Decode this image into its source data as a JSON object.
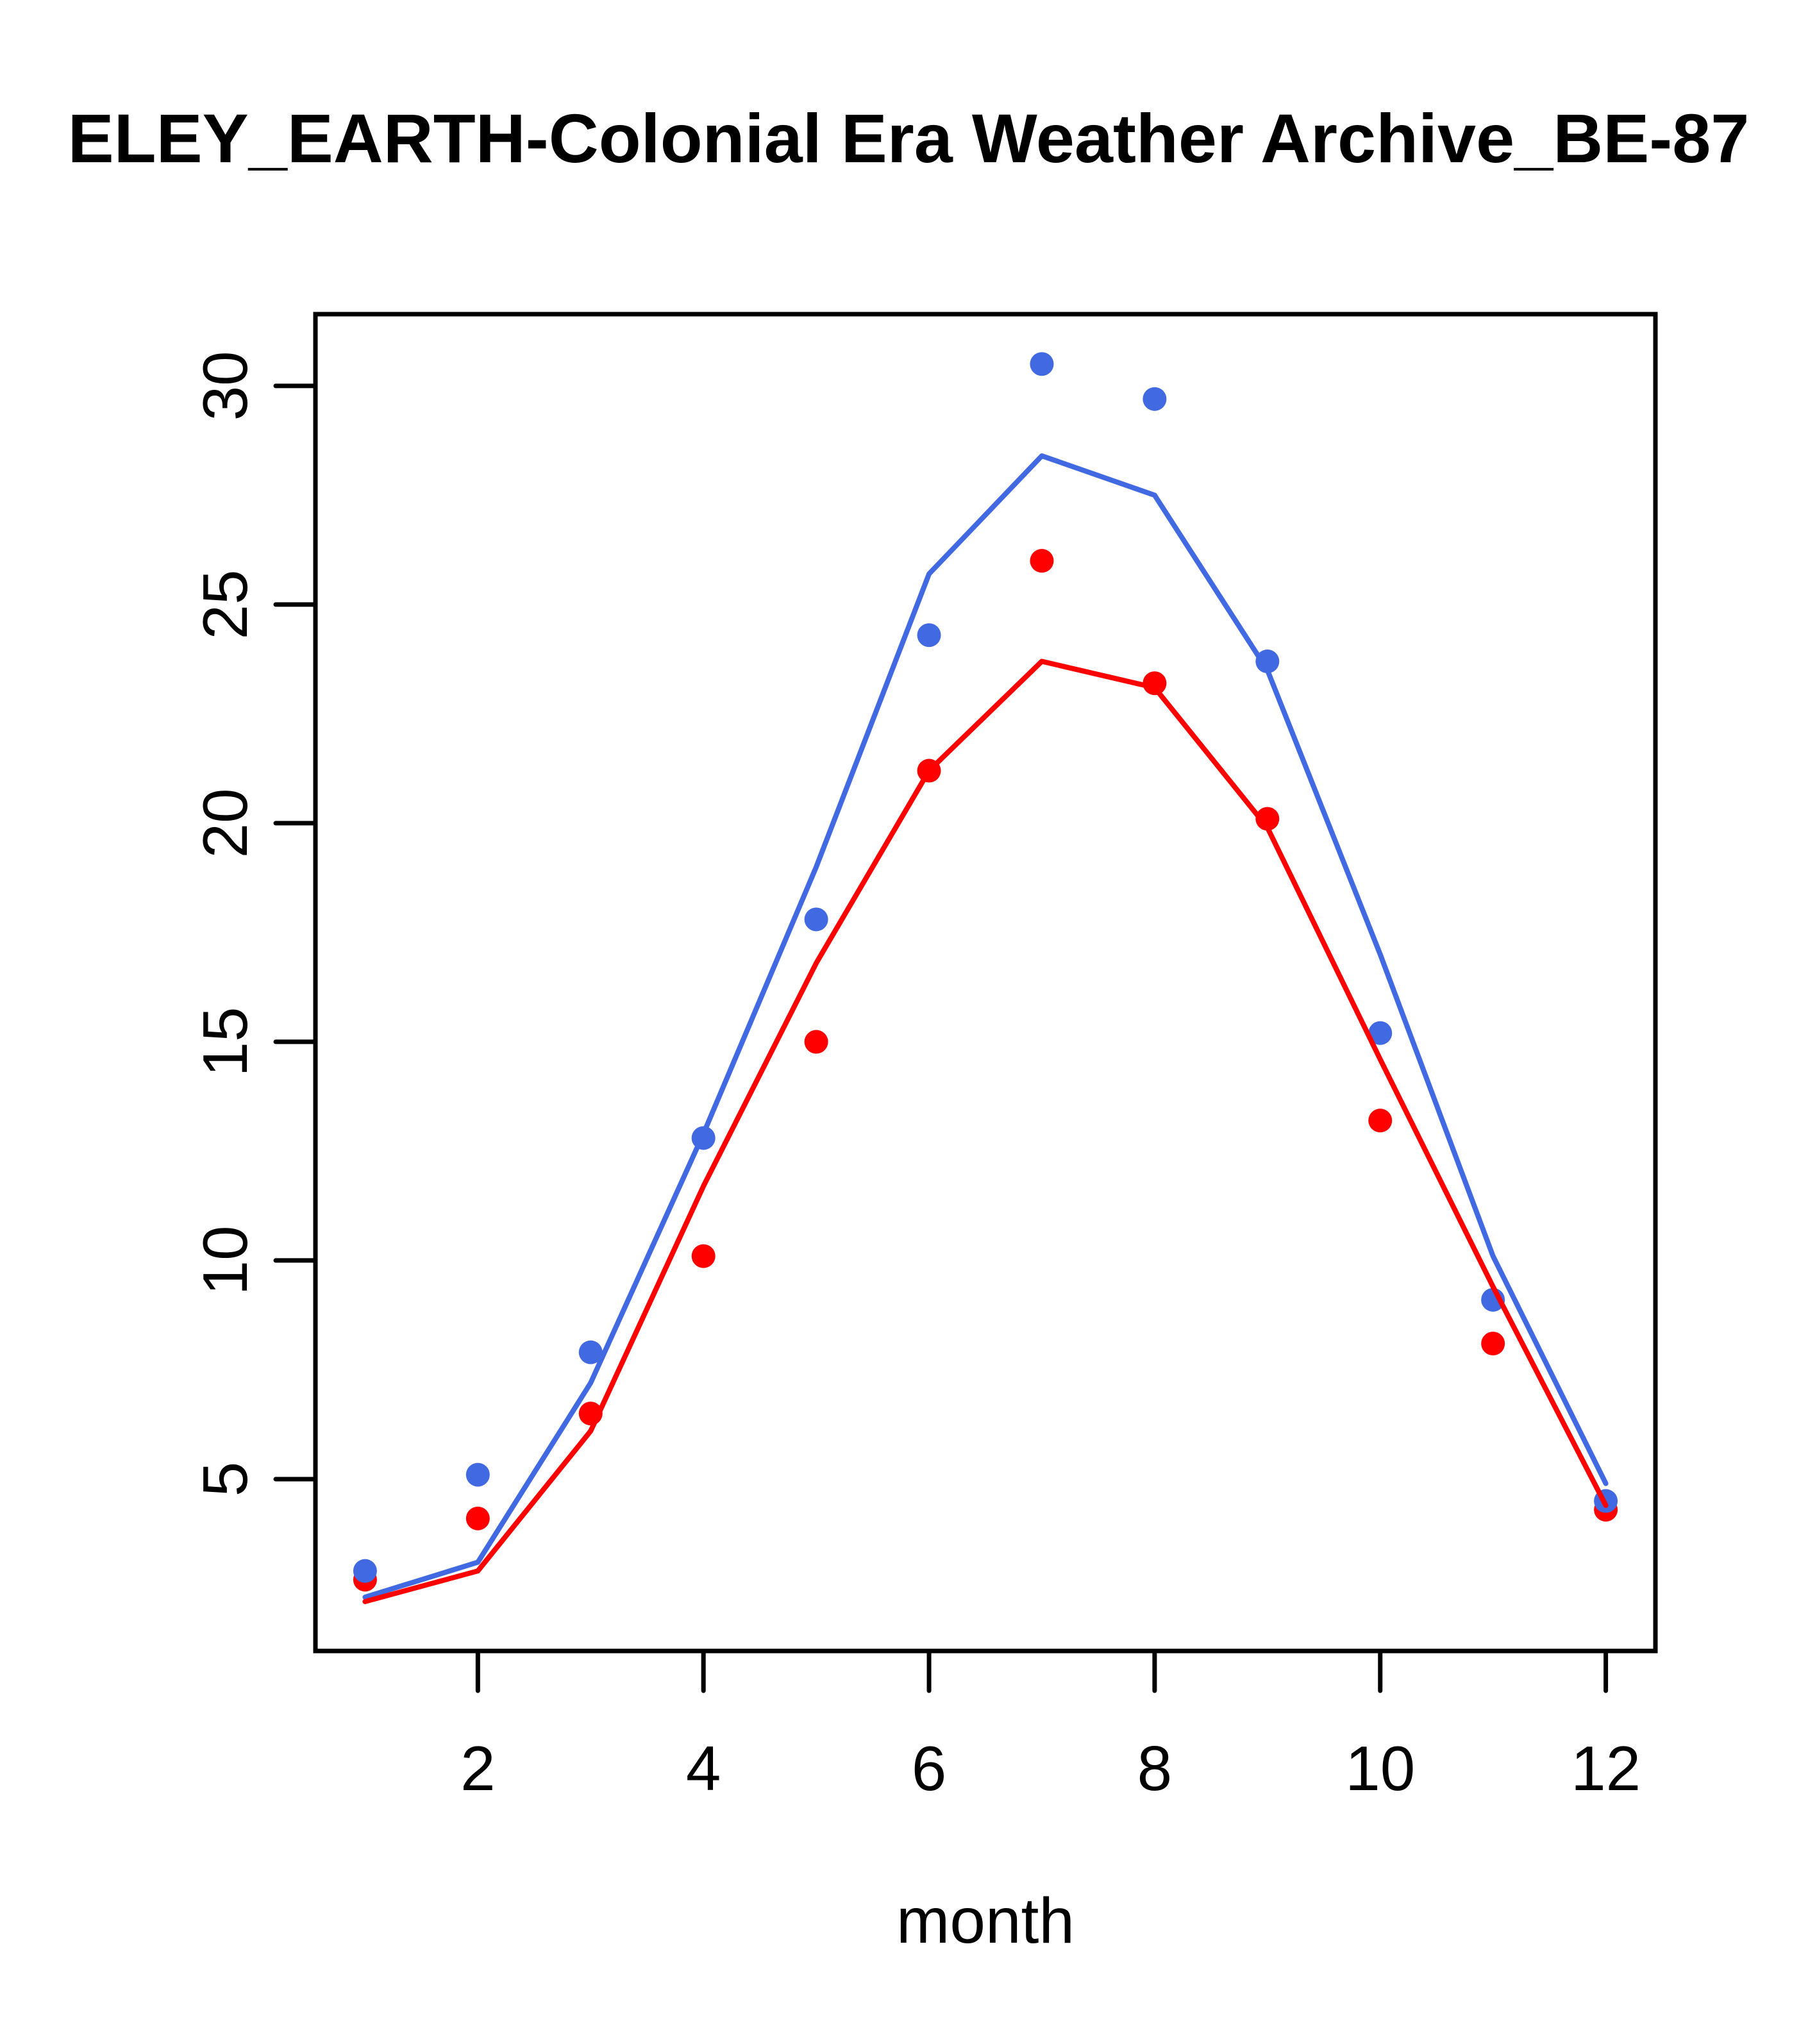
{
  "chart": {
    "title": "ELEY_EARTH-Colonial Era Weather Archive_BE-87",
    "xlabel": "month"
  },
  "chart_data": {
    "type": "line",
    "title": "ELEY_EARTH-Colonial Era Weather Archive_BE-87",
    "xlabel": "month",
    "ylabel": "",
    "x": [
      1,
      2,
      3,
      4,
      5,
      6,
      7,
      8,
      9,
      10,
      11,
      12
    ],
    "xticks": [
      2,
      4,
      6,
      8,
      10,
      12
    ],
    "yticks": [
      5,
      10,
      15,
      20,
      25,
      30
    ],
    "xlim": [
      0.56,
      12.44
    ],
    "ylim": [
      1.07,
      31.64
    ],
    "grid": false,
    "legend_position": "none",
    "axis_color": "#000000",
    "background": "#ffffff",
    "series": [
      {
        "name": "red-points",
        "style": "points",
        "color": "#ff0000",
        "values": [
          2.7,
          4.1,
          6.5,
          10.1,
          15.0,
          21.2,
          26.0,
          23.2,
          20.1,
          13.2,
          8.1,
          4.3
        ]
      },
      {
        "name": "blue-points",
        "style": "points",
        "color": "#4169e1",
        "values": [
          2.9,
          5.1,
          7.9,
          12.8,
          17.8,
          24.3,
          30.5,
          29.7,
          23.7,
          15.2,
          9.1,
          4.5
        ]
      },
      {
        "name": "blue-line",
        "style": "line",
        "color": "#4169e1",
        "values": [
          2.3,
          3.1,
          7.2,
          12.9,
          19.0,
          25.7,
          28.4,
          27.5,
          23.5,
          17.0,
          10.1,
          4.9
        ]
      },
      {
        "name": "red-line",
        "style": "line",
        "color": "#ff0000",
        "values": [
          2.2,
          2.9,
          6.1,
          11.7,
          16.8,
          21.2,
          23.7,
          23.1,
          19.9,
          14.6,
          9.4,
          4.4
        ]
      }
    ]
  }
}
